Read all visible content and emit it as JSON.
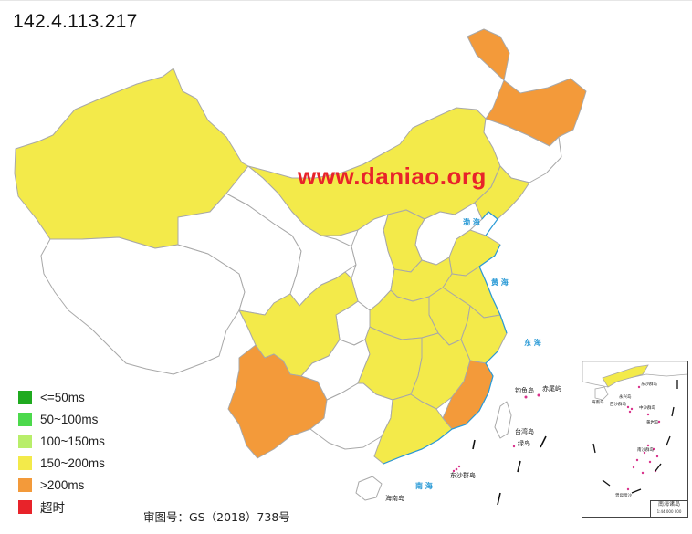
{
  "title": "142.4.113.217",
  "watermark": "www.daniao.org",
  "approval_number": "审图号：GS（2018）738号",
  "colors": {
    "lte50": "#1faa1f",
    "50_100": "#4cd94c",
    "100_150": "#b8ee6a",
    "150_200": "#f3ea4a",
    "gt200": "#f39a3a",
    "timeout": "#e8232a",
    "no_data": "#ffffff",
    "border": "#a8a8a8",
    "water_label": "#2a9ad6",
    "island_dot": "#d9338c"
  },
  "legend": [
    {
      "label": "<=50ms",
      "color": "#1faa1f"
    },
    {
      "label": "50~100ms",
      "color": "#4cd94c"
    },
    {
      "label": "100~150ms",
      "color": "#b8ee6a"
    },
    {
      "label": "150~200ms",
      "color": "#f3ea4a"
    },
    {
      "label": ">200ms",
      "color": "#f39a3a"
    },
    {
      "label": "超时",
      "color": "#e8232a"
    }
  ],
  "map_labels": {
    "bohai": "渤 海",
    "huanghai": "黄 海",
    "donghai": "东 海",
    "nanhai": "南 海",
    "diaoyu": "钓鱼岛",
    "chiwei": "赤尾屿",
    "taiwan": "台湾岛",
    "lvdao": "绿岛",
    "dongsha": "东沙群岛",
    "hainan": "海南岛"
  },
  "inset": {
    "caption_line1": "南海诸岛",
    "caption_line2": "1:44 000 000",
    "labels": [
      "东沙群岛",
      "西沙群岛",
      "永兴岛",
      "中沙群岛",
      "黄岩岛",
      "南沙群岛",
      "曾母暗沙",
      "海南岛"
    ]
  }
}
